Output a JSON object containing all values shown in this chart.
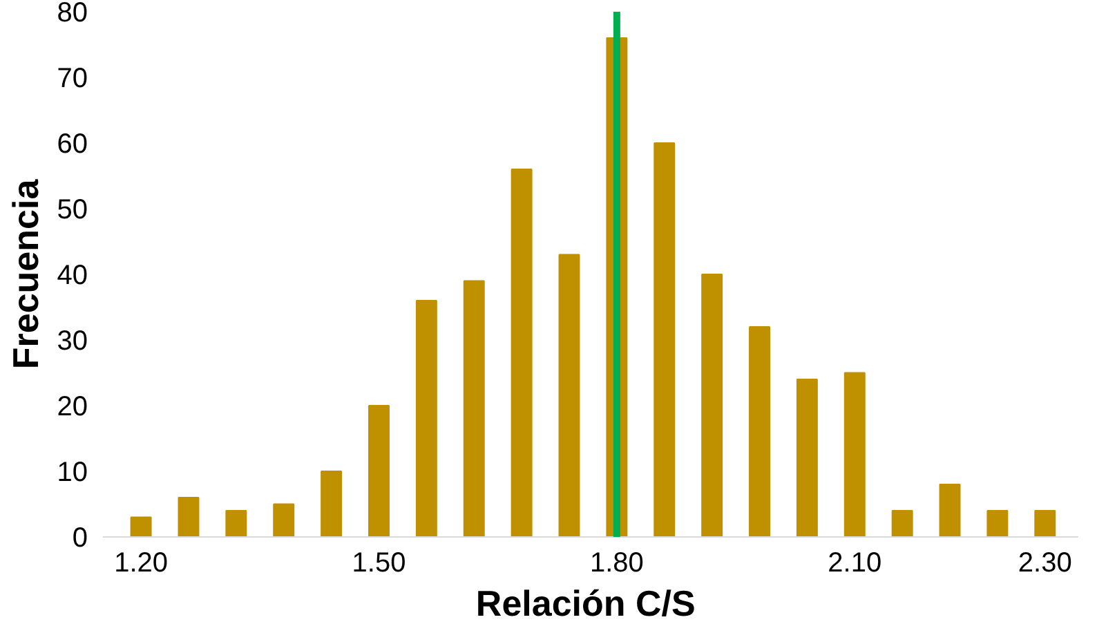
{
  "chart_data": {
    "type": "bar",
    "xlabel": "Relación  C/S",
    "ylabel": "Frecuencia",
    "categories": [
      "1.20",
      null,
      null,
      null,
      null,
      "1.50",
      null,
      null,
      null,
      null,
      "1.80",
      null,
      null,
      null,
      null,
      "2.10",
      null,
      null,
      null,
      "2.30"
    ],
    "series": [
      {
        "color": "#bf9000",
        "values": [
          3,
          6,
          4,
          5,
          10,
          20,
          36,
          39,
          56,
          43,
          76,
          60,
          40,
          32,
          24,
          25,
          4,
          8,
          4,
          4
        ]
      }
    ],
    "ylim": [
      0,
      80
    ],
    "yticks": [
      0,
      10,
      20,
      30,
      40,
      50,
      60,
      70,
      80
    ],
    "grid": false,
    "ref_lines": [
      {
        "axis": "x",
        "value": "1.80",
        "color": "#00b050"
      }
    ]
  }
}
